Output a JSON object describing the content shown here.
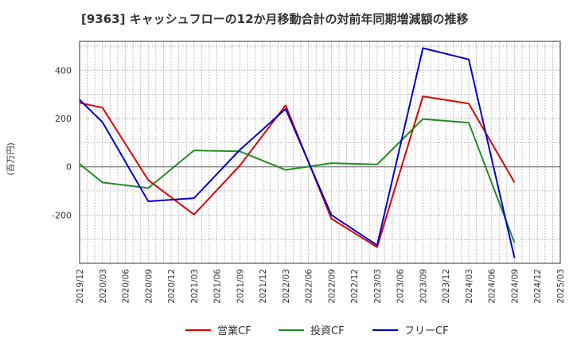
{
  "chart_data": {
    "type": "line",
    "title": "[9363]  キャッシュフローの12か月移動合計の対前年同期増減額の推移",
    "ylabel": "(百万円)",
    "xlabel": "",
    "ylim": [
      -400,
      520
    ],
    "yticks": [
      -200,
      0,
      200,
      400
    ],
    "grid": true,
    "legend_position": "bottom",
    "x": [
      "2019/12",
      "2020/03",
      "2020/06",
      "2020/09",
      "2020/12",
      "2021/03",
      "2021/06",
      "2021/09",
      "2021/12",
      "2022/03",
      "2022/06",
      "2022/09",
      "2022/12",
      "2023/03",
      "2023/06",
      "2023/09",
      "2023/12",
      "2024/03",
      "2024/06",
      "2024/09",
      "2024/12",
      "2025/03"
    ],
    "series": [
      {
        "name": "営業CF",
        "color": "#dd0000",
        "values": [
          265,
          245,
          null,
          -55,
          null,
          -198,
          null,
          5,
          null,
          255,
          null,
          -215,
          null,
          -333,
          null,
          292,
          null,
          262,
          null,
          -65,
          null,
          null
        ]
      },
      {
        "name": "投資CF",
        "color": "#228b22",
        "values": [
          12,
          -65,
          null,
          -88,
          null,
          68,
          null,
          64,
          null,
          -13,
          null,
          15,
          null,
          10,
          null,
          198,
          null,
          183,
          null,
          -315,
          null,
          null
        ]
      },
      {
        "name": "フリーCF",
        "color": "#0000cc",
        "values": [
          278,
          185,
          null,
          -143,
          null,
          -130,
          null,
          70,
          null,
          240,
          null,
          -200,
          null,
          -325,
          null,
          492,
          null,
          445,
          null,
          -378,
          null,
          null
        ]
      }
    ]
  }
}
